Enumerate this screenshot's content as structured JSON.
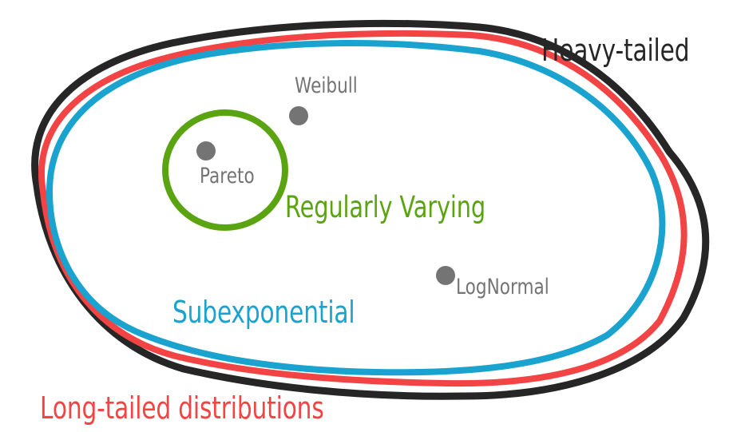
{
  "sets": {
    "heavy_tailed": {
      "label": "Heavy-tailed",
      "color": "#262626"
    },
    "long_tailed": {
      "label": "Long-tailed distributions",
      "color": "#f24444"
    },
    "subexponential": {
      "label": "Subexponential",
      "color": "#1aa3cf"
    },
    "regularly_varying": {
      "label": "Regularly Varying",
      "color": "#5aa412"
    }
  },
  "distributions": {
    "weibull": {
      "label": "Weibull",
      "color": "#747474"
    },
    "pareto": {
      "label": "Pareto",
      "color": "#747474"
    },
    "lognormal": {
      "label": "LogNormal",
      "color": "#747474"
    }
  }
}
